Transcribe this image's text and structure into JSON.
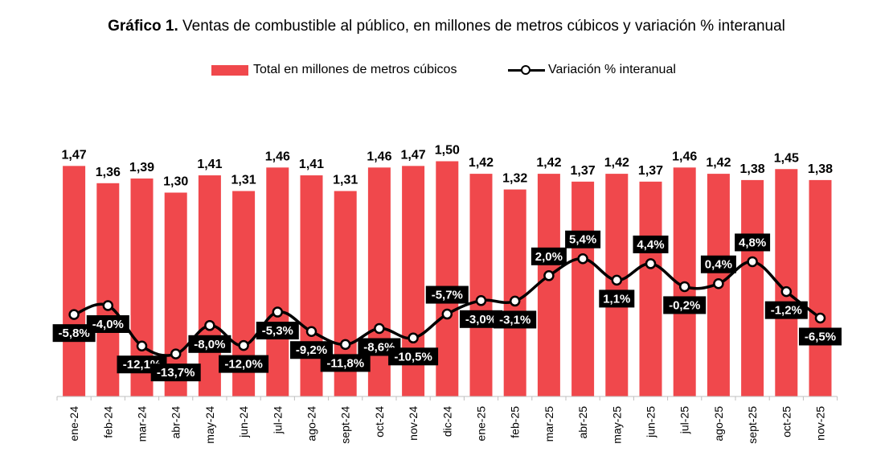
{
  "title": {
    "bold": "Gráfico 1.",
    "text": " Ventas de combustible al público, en millones de metros cúbicos y variación % interanual"
  },
  "legend": {
    "bars": "Total en millones de metros cúbicos",
    "line": "Variación % interanual"
  },
  "colors": {
    "bar": "#f0484c",
    "line": "#000000",
    "label_box": "#000000",
    "label_text": "#ffffff"
  },
  "chart_data": {
    "type": "bar+line",
    "categories": [
      "ene-24",
      "feb-24",
      "mar-24",
      "abr-24",
      "may-24",
      "jun-24",
      "jul-24",
      "ago-24",
      "sept-24",
      "oct-24",
      "nov-24",
      "dic-24",
      "ene-25",
      "feb-25",
      "mar-25",
      "abr-25",
      "may-25",
      "jun-25",
      "jul-25",
      "ago-25",
      "sept-25",
      "oct-25",
      "nov-25"
    ],
    "series": [
      {
        "name": "Total en millones de metros cúbicos",
        "type": "bar",
        "values": [
          1.47,
          1.36,
          1.39,
          1.3,
          1.41,
          1.31,
          1.46,
          1.41,
          1.31,
          1.46,
          1.47,
          1.5,
          1.42,
          1.32,
          1.42,
          1.37,
          1.42,
          1.37,
          1.46,
          1.42,
          1.38,
          1.45,
          1.38
        ],
        "labels": [
          "1,47",
          "1,36",
          "1,39",
          "1,30",
          "1,41",
          "1,31",
          "1,46",
          "1,41",
          "1,31",
          "1,46",
          "1,47",
          "1,50",
          "1,42",
          "1,32",
          "1,42",
          "1,37",
          "1,42",
          "1,37",
          "1,46",
          "1,42",
          "1,38",
          "1,45",
          "1,38"
        ]
      },
      {
        "name": "Variación % interanual",
        "type": "line",
        "values": [
          -5.8,
          -4.0,
          -12.1,
          -13.7,
          -8.0,
          -12.0,
          -5.3,
          -9.2,
          -11.8,
          -8.6,
          -10.5,
          -5.7,
          -3.0,
          -3.1,
          2.0,
          5.4,
          1.1,
          4.4,
          -0.2,
          0.4,
          4.8,
          -1.2,
          -6.5
        ],
        "labels": [
          "-5,8%",
          "-4,0%",
          "-12,1%",
          "-13,7%",
          "-8,0%",
          "-12,0%",
          "-5,3%",
          "-9,2%",
          "-11,8%",
          "-8,6%",
          "-10,5%",
          "-5,7%",
          "-3,0%",
          "-3,1%",
          "2,0%",
          "5,4%",
          "1,1%",
          "4,4%",
          "-0,2%",
          "0,4%",
          "4,8%",
          "-1,2%",
          "-6,5%"
        ],
        "label_position": [
          "below",
          "below",
          "below",
          "below",
          "below",
          "below",
          "below",
          "below",
          "below",
          "below",
          "below",
          "above",
          "below",
          "below",
          "above",
          "above",
          "below",
          "above",
          "below",
          "above",
          "above",
          "below",
          "below"
        ]
      }
    ],
    "bar_ylim": [
      0,
      1.5
    ],
    "line_ylim": [
      -15,
      6
    ],
    "grid": false,
    "legend_position": "top-center"
  }
}
